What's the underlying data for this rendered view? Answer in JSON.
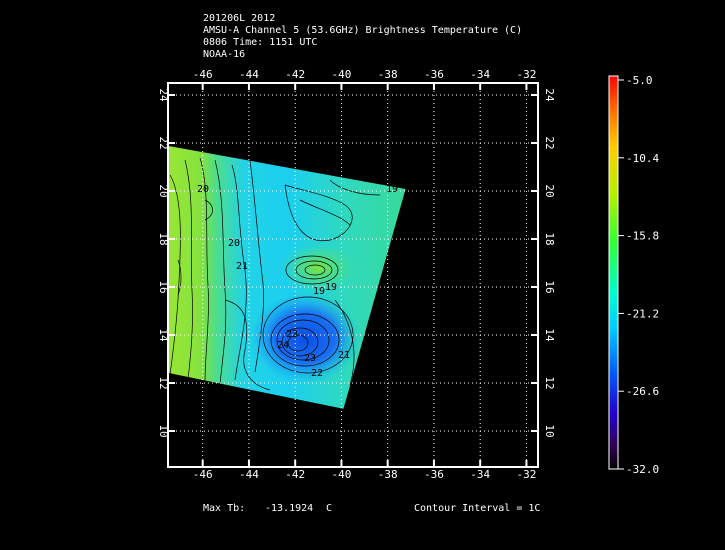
{
  "header": {
    "line1": "201206L 2012",
    "line2": "AMSU-A Channel 5 (53.6GHz) Brightness Temperature (C)",
    "line3": "0806 Time: 1151 UTC",
    "line4": "NOAA-16"
  },
  "footer": {
    "max_label": "Max Tb:",
    "max_value": "-13.1924",
    "max_unit": "C",
    "contour_text": "Contour Interval = 1C"
  },
  "map": {
    "lon_ticks": [
      -46,
      -44,
      -42,
      -40,
      -38,
      -36,
      -34,
      -32
    ],
    "lat_ticks": [
      10,
      12,
      14,
      16,
      18,
      20,
      22,
      24
    ],
    "lon_range": [
      -47.5,
      -31.5
    ],
    "lat_range": [
      8.5,
      24.5
    ],
    "swath_lonlat": [
      [
        -47.5,
        21.9
      ],
      [
        -37.2,
        20.1
      ],
      [
        -39.9,
        10.9
      ],
      [
        -47.5,
        12.4
      ]
    ],
    "contour_labels": [
      "20",
      "20",
      "21",
      "19",
      "23",
      "24",
      "23",
      "22",
      "21",
      "19",
      "19"
    ]
  },
  "colorbar": {
    "labels": [
      "-5.0",
      "-10.4",
      "-15.8",
      "-21.2",
      "-26.6",
      "-32.0"
    ],
    "colors": [
      "#ff0000",
      "#ff9900",
      "#ffff00",
      "#66ff00",
      "#00ff99",
      "#00ccff",
      "#0066ff",
      "#0000cc",
      "#330066",
      "#000000"
    ]
  }
}
